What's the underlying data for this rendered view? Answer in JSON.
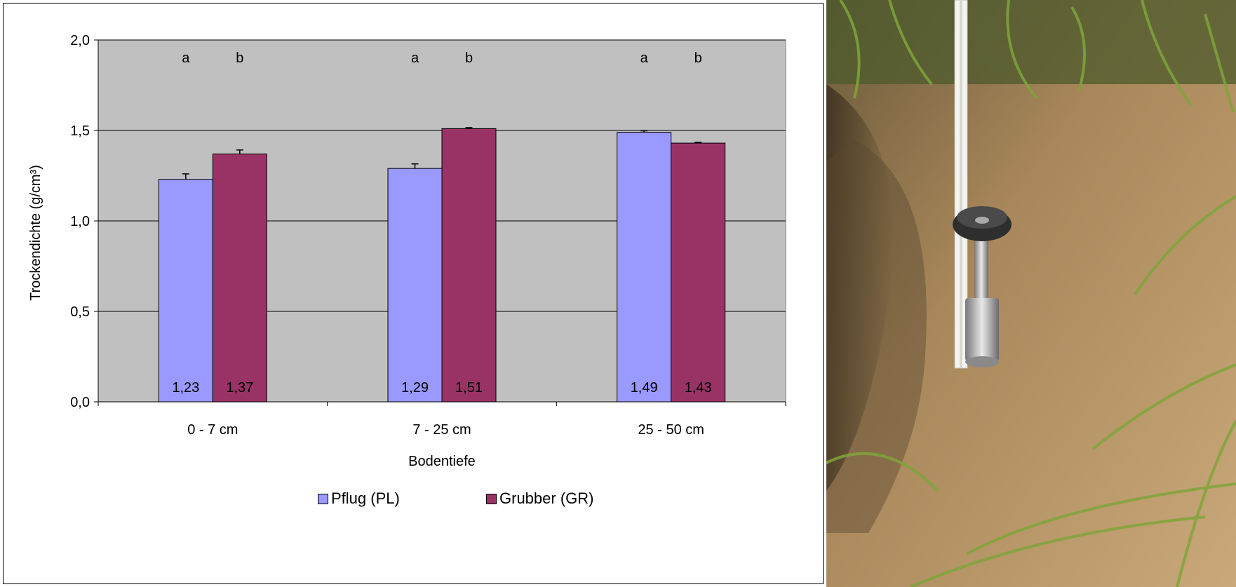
{
  "chart_data": {
    "type": "bar",
    "categories": [
      "0 - 7 cm",
      "7 - 25 cm",
      "25 - 50 cm"
    ],
    "series": [
      {
        "name": "Pflug (PL)",
        "values": [
          1.23,
          1.29,
          1.49
        ],
        "errors": [
          0.03,
          0.025,
          0.008
        ],
        "letters": [
          "a",
          "a",
          "a"
        ],
        "labels": [
          "1,23",
          "1,29",
          "1,49"
        ],
        "color": "#9999FF"
      },
      {
        "name": "Grubber (GR)",
        "values": [
          1.37,
          1.51,
          1.43
        ],
        "errors": [
          0.022,
          0.006,
          0.005
        ],
        "letters": [
          "b",
          "b",
          "b"
        ],
        "labels": [
          "1,37",
          "1,51",
          "1,43"
        ],
        "color": "#993366"
      }
    ],
    "ylabel": "Trockendichte (g/cm³)",
    "xlabel": "Bodentiefe",
    "ylim": [
      0,
      2.0
    ],
    "yticks": [
      0,
      0.5,
      1.0,
      1.5,
      2.0
    ],
    "ytick_labels": [
      "0,0",
      "0,5",
      "1,0",
      "1,5",
      "2,0"
    ],
    "grid": true,
    "plot_background": "#C0C0C0",
    "legend_position": "bottom"
  },
  "photo": {
    "description_icon": "soil-core-sampler-photo"
  }
}
